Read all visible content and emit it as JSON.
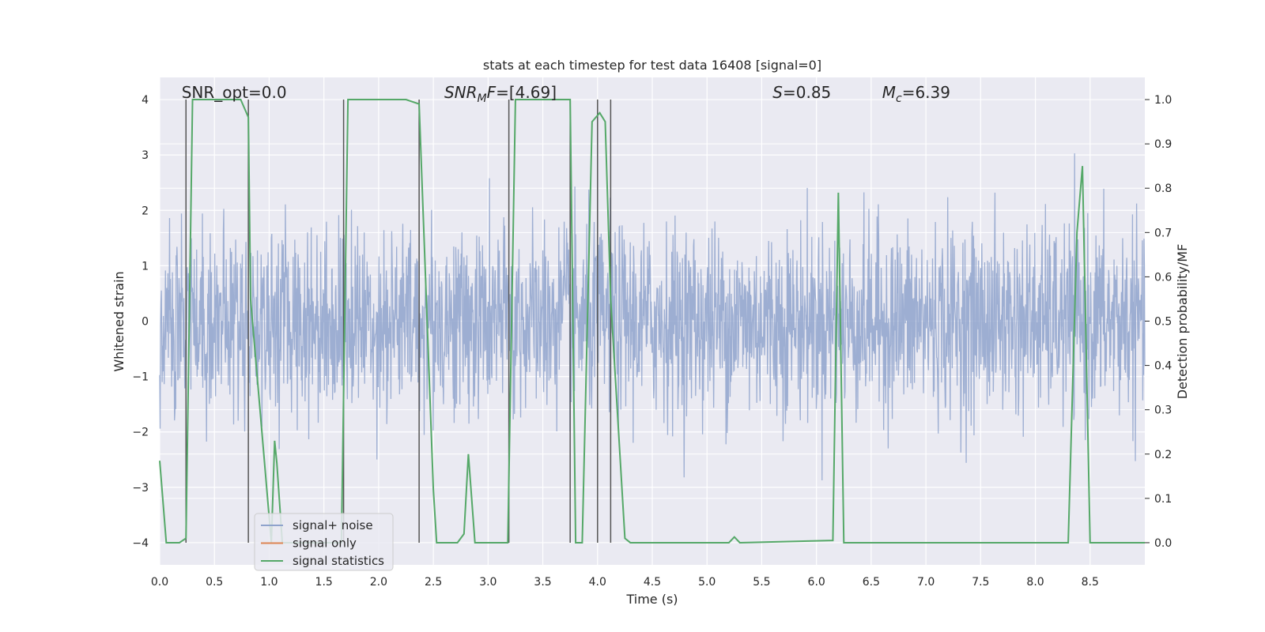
{
  "chart_data": {
    "type": "line",
    "title": "stats at each timestep for test data 16408 [signal=0]",
    "xlabel": "Time (s)",
    "ylabel": "Whitened strain",
    "y2label": "Detection probability/MF",
    "xlim": [
      0.0,
      9.0
    ],
    "ylim": [
      -4.4,
      4.4
    ],
    "y2lim": [
      -0.05,
      1.05
    ],
    "xticks": [
      0.0,
      0.5,
      1.0,
      1.5,
      2.0,
      2.5,
      3.0,
      3.5,
      4.0,
      4.5,
      5.0,
      5.5,
      6.0,
      6.5,
      7.0,
      7.5,
      8.0,
      8.5
    ],
    "xtick_labels": [
      "0.0",
      "0.5",
      "1.0",
      "1.5",
      "2.0",
      "2.5",
      "3.0",
      "3.5",
      "4.0",
      "4.5",
      "5.0",
      "5.5",
      "6.0",
      "6.5",
      "7.0",
      "7.5",
      "8.0",
      "8.5"
    ],
    "yticks": [
      4,
      3,
      2,
      1,
      0,
      -1,
      -2,
      -3,
      -4
    ],
    "ytick_labels": [
      "4",
      "3",
      "2",
      "1",
      "0",
      "−1",
      "−2",
      "−3",
      "−4"
    ],
    "y2ticks": [
      1.0,
      0.9,
      0.8,
      0.7,
      0.6,
      0.5,
      0.4,
      0.3,
      0.2,
      0.1,
      0.0
    ],
    "y2tick_labels": [
      "1.0",
      "0.9",
      "0.8",
      "0.7",
      "0.6",
      "0.5",
      "0.4",
      "0.3",
      "0.2",
      "0.1",
      "0.0"
    ],
    "grid": true,
    "legend_position": "lower-left",
    "annotations": [
      {
        "text": "SNR_opt=0.0",
        "x": 0.2,
        "style": "normal"
      },
      {
        "text": "SNRMF=[4.69]",
        "x": 2.6,
        "style": "italic"
      },
      {
        "text": "S=0.85",
        "x": 5.6,
        "style": "italic-first"
      },
      {
        "text": "Mc=6.39",
        "x": 6.6,
        "style": "italic-sub"
      }
    ],
    "series": [
      {
        "name": "signal+ noise",
        "color": "#8fa3cc",
        "kind": "noise",
        "amplitude_std": 0.85,
        "amplitude_max": 4.0
      },
      {
        "name": "signal only",
        "color": "#dd8452",
        "values": []
      },
      {
        "name": "signal statistics",
        "color": "#55a868",
        "x": [
          0.0,
          0.06,
          0.18,
          0.24,
          0.3,
          0.6,
          0.74,
          0.81,
          0.83,
          1.02,
          1.05,
          1.07,
          1.12,
          1.2,
          1.66,
          1.72,
          1.8,
          2.25,
          2.37,
          2.5,
          2.53,
          2.72,
          2.78,
          2.82,
          2.88,
          3.18,
          3.25,
          3.75,
          3.8,
          3.86,
          3.95,
          4.02,
          4.07,
          4.12,
          4.25,
          4.3,
          4.4,
          5.2,
          5.25,
          5.3,
          6.15,
          6.2,
          6.25,
          6.3,
          8.3,
          8.38,
          8.43,
          8.5,
          9.0
        ],
        "values": [
          0.185,
          0.0,
          0.0,
          0.01,
          1.0,
          1.0,
          1.0,
          0.96,
          0.55,
          0.0,
          0.23,
          0.18,
          0.0,
          0.0,
          0.0,
          1.0,
          1.0,
          1.0,
          0.99,
          0.12,
          0.0,
          0.0,
          0.02,
          0.2,
          0.0,
          0.0,
          1.0,
          1.0,
          0.0,
          0.0,
          0.95,
          0.97,
          0.95,
          0.55,
          0.01,
          0.0,
          0.0,
          0.0,
          0.013,
          0.0,
          0.005,
          0.79,
          0.0,
          0.0,
          0.0,
          0.7,
          0.85,
          0.0,
          0.0
        ]
      }
    ],
    "vertical_markers": [
      0.24,
      0.81,
      1.68,
      2.37,
      3.19,
      3.75,
      4.0,
      4.12
    ]
  }
}
